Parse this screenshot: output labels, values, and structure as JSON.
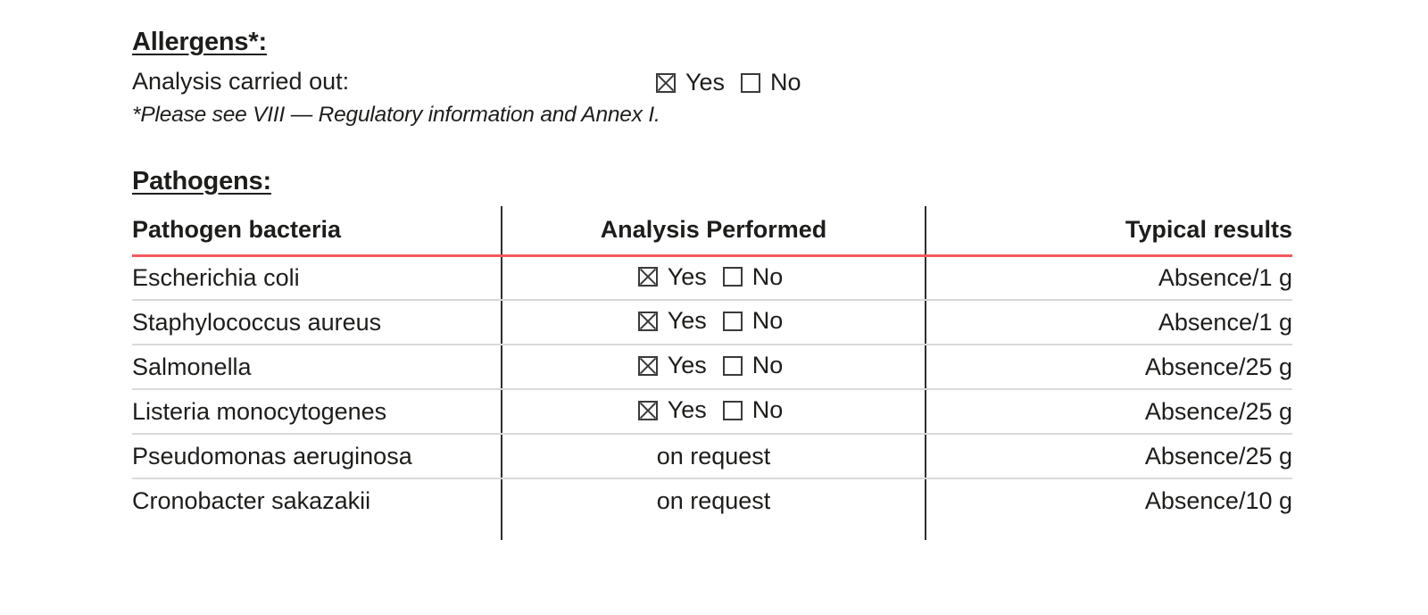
{
  "allergens": {
    "heading": "Allergens*:",
    "analysis_label": "Analysis carried out:",
    "checkboxes": {
      "yes_label": "Yes",
      "no_label": "No",
      "yes_checked": true,
      "no_checked": false
    },
    "footnote": "*Please see VIII — Regulatory information and Annex I."
  },
  "pathogens": {
    "heading": "Pathogens:",
    "table": {
      "columns": [
        "Pathogen bacteria",
        "Analysis Performed",
        "Typical results"
      ],
      "rows": [
        {
          "bacteria": "Escherichia coli",
          "analysis": {
            "type": "checkboxes",
            "yes_label": "Yes",
            "no_label": "No",
            "yes_checked": true,
            "no_checked": false
          },
          "typical_result": "Absence/1 g"
        },
        {
          "bacteria": "Staphylococcus aureus",
          "analysis": {
            "type": "checkboxes",
            "yes_label": "Yes",
            "no_label": "No",
            "yes_checked": true,
            "no_checked": false
          },
          "typical_result": "Absence/1 g"
        },
        {
          "bacteria": "Salmonella",
          "analysis": {
            "type": "checkboxes",
            "yes_label": "Yes",
            "no_label": "No",
            "yes_checked": true,
            "no_checked": false
          },
          "typical_result": "Absence/25 g"
        },
        {
          "bacteria": "Listeria monocytogenes",
          "analysis": {
            "type": "checkboxes",
            "yes_label": "Yes",
            "no_label": "No",
            "yes_checked": true,
            "no_checked": false
          },
          "typical_result": "Absence/25 g"
        },
        {
          "bacteria": "Pseudomonas aeruginosa",
          "analysis": {
            "type": "text",
            "text": "on request"
          },
          "typical_result": "Absence/25 g"
        },
        {
          "bacteria": "Cronobacter sakazakii",
          "analysis": {
            "type": "text",
            "text": "on request"
          },
          "typical_result": "Absence/10 g"
        }
      ]
    }
  },
  "colors": {
    "text": "#1d1d1b",
    "header_rule": "#f2595e",
    "row_rule": "#d9d9d9",
    "column_rule": "#2e2e2e",
    "checkbox": "#3a3a3a"
  }
}
